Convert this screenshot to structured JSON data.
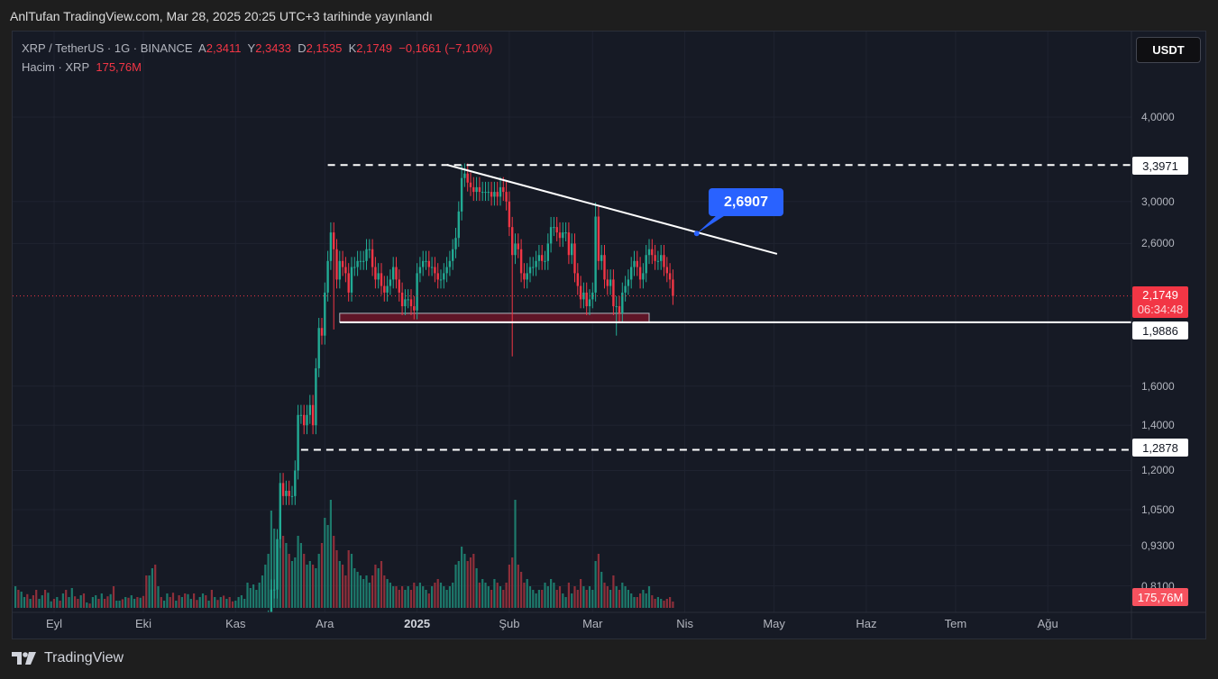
{
  "publish_line": "AnlTufan TradingView.com, Mar 28, 2025 20:25 UTC+3 tarihinde yayınlandı",
  "legend": {
    "symbol": "XRP / TetherUS · 1G · BINANCE",
    "open_label": "A",
    "open": "2,3411",
    "high_label": "Y",
    "high": "2,3433",
    "low_label": "D",
    "low": "2,1535",
    "close_label": "K",
    "close": "2,1749",
    "change": "−0,1661 (−7,10%)",
    "volume_label": "Hacim · XRP",
    "volume": "175,76M"
  },
  "currency_button": "USDT",
  "brand": "TradingView",
  "colors": {
    "up": "#22ab94",
    "down": "#f23645",
    "up_vol": "#1d7a6c",
    "down_vol": "#8e2f3a",
    "accent": "#2962ff"
  },
  "chart_data": {
    "type": "candlestick",
    "scale": "log",
    "y_ticks": [
      {
        "value": 4.0,
        "label": "4,0000"
      },
      {
        "value": 3.0,
        "label": "3,0000"
      },
      {
        "value": 2.6,
        "label": "2,6000"
      },
      {
        "value": 1.6,
        "label": "1,6000"
      },
      {
        "value": 1.4,
        "label": "1,4000"
      },
      {
        "value": 1.2,
        "label": "1,2000"
      },
      {
        "value": 1.05,
        "label": "1,0500"
      },
      {
        "value": 0.93,
        "label": "0,9300"
      },
      {
        "value": 0.81,
        "label": "0,8100"
      }
    ],
    "x_ticks": [
      {
        "day": 0,
        "label": "Eyl"
      },
      {
        "day": 30,
        "label": "Eki"
      },
      {
        "day": 61,
        "label": "Kas"
      },
      {
        "day": 91,
        "label": "Ara"
      },
      {
        "day": 122,
        "label": "2025"
      },
      {
        "day": 153,
        "label": "Şub"
      },
      {
        "day": 181,
        "label": "Mar"
      },
      {
        "day": 212,
        "label": "Nis"
      },
      {
        "day": 242,
        "label": "May"
      },
      {
        "day": 273,
        "label": "Haz"
      },
      {
        "day": 303,
        "label": "Tem"
      },
      {
        "day": 334,
        "label": "Ağu"
      }
    ],
    "candles_start_day": 61,
    "closes": [
      0.5,
      0.5,
      0.5,
      0.51,
      0.52,
      0.54,
      0.55,
      0.56,
      0.6,
      0.62,
      0.7,
      0.72,
      0.8,
      0.8,
      0.95,
      1.15,
      1.1,
      1.12,
      1.1,
      1.1,
      1.2,
      1.45,
      1.45,
      1.4,
      1.45,
      1.5,
      1.4,
      1.7,
      1.95,
      1.9,
      2.2,
      2.45,
      2.7,
      2.55,
      2.3,
      2.45,
      2.4,
      2.35,
      2.2,
      2.4,
      2.4,
      2.45,
      2.45,
      2.45,
      2.55,
      2.55,
      2.4,
      2.3,
      2.35,
      2.25,
      2.2,
      2.25,
      2.3,
      2.4,
      2.3,
      2.2,
      2.1,
      2.15,
      2.15,
      2.1,
      2.07,
      2.35,
      2.4,
      2.45,
      2.45,
      2.4,
      2.4,
      2.35,
      2.3,
      2.3,
      2.35,
      2.4,
      2.45,
      2.55,
      2.65,
      2.9,
      3.25,
      3.3,
      3.2,
      3.15,
      3.1,
      3.15,
      3.1,
      3.1,
      3.1,
      3.1,
      3.05,
      3.1,
      3.05,
      3.15,
      3.1,
      3.0,
      2.75,
      2.5,
      2.6,
      2.55,
      2.35,
      2.3,
      2.35,
      2.4,
      2.4,
      2.45,
      2.5,
      2.45,
      2.45,
      2.6,
      2.75,
      2.75,
      2.7,
      2.65,
      2.7,
      2.7,
      2.5,
      2.6,
      2.35,
      2.25,
      2.15,
      2.2,
      2.1,
      2.15,
      2.2,
      2.85,
      2.45,
      2.5,
      2.3,
      2.25,
      2.3,
      2.1,
      2.1,
      2.05,
      2.2,
      2.25,
      2.3,
      2.4,
      2.45,
      2.4,
      2.3,
      2.35,
      2.5,
      2.55,
      2.5,
      2.45,
      2.45,
      2.5,
      2.4,
      2.35,
      2.3,
      2.1749
    ],
    "low_overrides": {
      "94": 1.94,
      "154": 1.77,
      "189": 1.9
    },
    "high_overrides": {
      "137": 3.4,
      "182": 2.99
    },
    "volume_start_day": -14,
    "volume_m": [
      300,
      600,
      500,
      450,
      300,
      380,
      250,
      350,
      500,
      250,
      350,
      500,
      420,
      180,
      250,
      300,
      200,
      400,
      500,
      300,
      550,
      320,
      250,
      350,
      400,
      150,
      120,
      300,
      350,
      250,
      400,
      250,
      320,
      380,
      600,
      200,
      200,
      240,
      300,
      280,
      350,
      250,
      300,
      280,
      330,
      900,
      900,
      1100,
      1200,
      600,
      300,
      200,
      400,
      300,
      420,
      200,
      350,
      300,
      400,
      380,
      250,
      400,
      220,
      300,
      400,
      350,
      200,
      500,
      300,
      220,
      300,
      340,
      250,
      300,
      180,
      200,
      300,
      350,
      250,
      700,
      550,
      650,
      500,
      700,
      900,
      1200,
      1500,
      2700,
      2200,
      1900,
      2500,
      2000,
      1800,
      1500,
      1300,
      1400,
      2000,
      1800,
      1500,
      1200,
      1300,
      1200,
      1100,
      1500,
      1800,
      2500,
      2300,
      3000,
      2000,
      1600,
      1300,
      1200,
      900,
      1600,
      1500,
      1100,
      1000,
      900,
      800,
      900,
      700,
      900,
      1200,
      1100,
      1300,
      900,
      800,
      700,
      600,
      600,
      500,
      600,
      500,
      600,
      500,
      700,
      600,
      700,
      600,
      500,
      400,
      600,
      700,
      800,
      700,
      600,
      500,
      600,
      700,
      1200,
      1300,
      1700,
      1500,
      1300,
      1400,
      1500,
      1100,
      700,
      800,
      700,
      600,
      500,
      800,
      700,
      600,
      500,
      700,
      1200,
      1400,
      3000,
      1200,
      1000,
      700,
      800,
      600,
      500,
      400,
      500,
      500,
      700,
      600,
      800,
      700,
      500,
      600,
      400,
      300,
      700,
      400,
      600,
      500,
      800,
      600,
      500,
      600,
      500,
      1300,
      1500,
      1000,
      700,
      600,
      500,
      900,
      600,
      500,
      700,
      600,
      500,
      400,
      300,
      300,
      400,
      500,
      400,
      600,
      350,
      250,
      300,
      250,
      200,
      250,
      300,
      175.76
    ],
    "pre_candle_directions": "DUDUUDUDDUUDUUDUDUDUUDDUDUDUUDUDDUDUUDUDUUDUDDUUDUDUUDDUDUDUUDDUUDUDUDUDUDDUUDUDUUDUDUDUUDU",
    "levels": [
      {
        "price": 3.3971,
        "label": "3,3971",
        "style": "dashed",
        "from_day": 92
      },
      {
        "price": 1.9886,
        "label": "1,9886",
        "style": "solid",
        "from_day": 96
      },
      {
        "price": 1.2878,
        "label": "1,2878",
        "style": "dashed",
        "from_day": 83
      }
    ],
    "support_zone": {
      "from_day": 96,
      "to_day": 200,
      "top": 2.05,
      "bottom": 1.99
    },
    "trendline": {
      "from": {
        "day": 132,
        "price": 3.4
      },
      "to": {
        "day": 243,
        "price": 2.51
      }
    },
    "callout": {
      "value": "2,6907",
      "day": 216,
      "price": 2.6907
    },
    "last_price": {
      "value": "2,1749",
      "countdown": "06:34:48",
      "price": 2.1749
    },
    "last_volume_label": "175,76M"
  }
}
